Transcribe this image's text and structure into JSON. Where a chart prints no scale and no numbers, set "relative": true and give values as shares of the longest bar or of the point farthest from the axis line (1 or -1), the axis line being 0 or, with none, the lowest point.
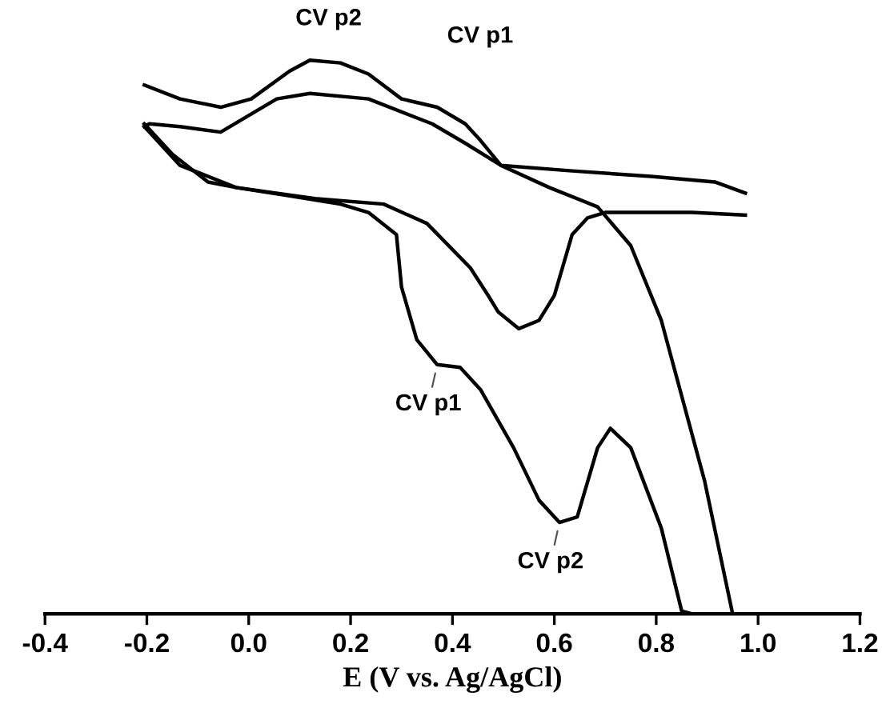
{
  "chart_data": {
    "type": "line",
    "relative": true,
    "xlabel": "E (V vs. Ag/AgCl)",
    "xlim": [
      -0.4,
      1.2
    ],
    "xticks": [
      {
        "value": -0.4,
        "label": "-0.4"
      },
      {
        "value": -0.2,
        "label": "-0.2"
      },
      {
        "value": 0.0,
        "label": "0.0"
      },
      {
        "value": 0.2,
        "label": "0.2"
      },
      {
        "value": 0.4,
        "label": "0.4"
      },
      {
        "value": 0.6,
        "label": "0.6"
      },
      {
        "value": 0.8,
        "label": "0.8"
      },
      {
        "value": 1.0,
        "label": "1.0"
      },
      {
        "value": 1.2,
        "label": "1.2"
      }
    ],
    "tick_labels": "x",
    "line_style": "solid",
    "marker": "none",
    "series": [
      {
        "color": "#000000",
        "x": [
          -0.205,
          -0.15,
          -0.08,
          -0.025,
          0.08,
          0.18,
          0.235,
          0.29,
          0.3,
          0.33,
          0.37,
          0.415,
          0.455,
          0.52,
          0.57,
          0.61,
          0.645,
          0.685,
          0.71,
          0.75,
          0.81,
          0.85,
          0.87
        ],
        "values": [
          0.885,
          0.83,
          0.78,
          0.77,
          0.755,
          0.74,
          0.725,
          0.685,
          0.59,
          0.495,
          0.45,
          0.445,
          0.405,
          0.3,
          0.205,
          0.165,
          0.175,
          0.3,
          0.335,
          0.3,
          0.155,
          0.005,
          0.0
        ]
      },
      {
        "color": "#000000",
        "x": [
          -0.205,
          -0.135,
          -0.055,
          0.005,
          0.08,
          0.12,
          0.18,
          0.235,
          0.3,
          0.37,
          0.425,
          0.455,
          0.495,
          0.59,
          0.685,
          0.75,
          0.81,
          0.895,
          0.95
        ],
        "values": [
          0.955,
          0.93,
          0.915,
          0.93,
          0.98,
          1.0,
          0.995,
          0.975,
          0.93,
          0.915,
          0.885,
          0.855,
          0.81,
          0.77,
          0.735,
          0.665,
          0.53,
          0.24,
          0.0
        ]
      },
      {
        "color": "#000000",
        "x": [
          -0.205,
          -0.135,
          -0.025,
          0.13,
          0.265,
          0.35,
          0.435,
          0.47,
          0.49,
          0.53,
          0.57,
          0.6,
          0.635,
          0.665,
          0.7,
          0.87,
          0.975
        ],
        "values": [
          0.88,
          0.81,
          0.77,
          0.75,
          0.74,
          0.705,
          0.625,
          0.575,
          0.545,
          0.515,
          0.53,
          0.575,
          0.685,
          0.715,
          0.725,
          0.725,
          0.72
        ]
      },
      {
        "color": "#000000",
        "x": [
          -0.205,
          -0.195,
          -0.135,
          -0.055,
          0.055,
          0.12,
          0.235,
          0.36,
          0.425,
          0.495,
          0.635,
          0.79,
          0.915,
          0.975
        ],
        "values": [
          0.88,
          0.885,
          0.88,
          0.87,
          0.93,
          0.94,
          0.93,
          0.885,
          0.85,
          0.81,
          0.8,
          0.79,
          0.78,
          0.76
        ]
      }
    ],
    "annotations": [
      "CV p2",
      "CV p1",
      {
        "text": "CV p1",
        "x": 0.37,
        "y": 0.45
      },
      {
        "text": "CV p2",
        "x": 0.61,
        "y": 0.165
      }
    ]
  }
}
